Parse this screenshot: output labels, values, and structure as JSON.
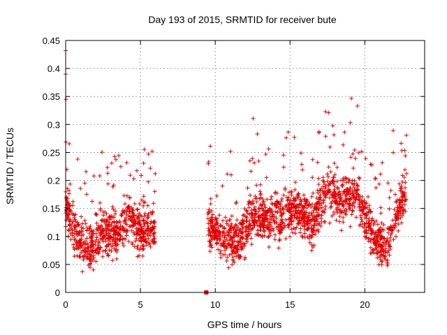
{
  "chart_data": {
    "type": "scatter",
    "title": "Day 193 of 2015, SRMTID for receiver bute",
    "xlabel": "GPS time / hours",
    "ylabel": "SRMTID / TECUs",
    "xlim": [
      0,
      24
    ],
    "ylim": [
      0,
      0.45
    ],
    "xticks": [
      0,
      5,
      10,
      15,
      20
    ],
    "xtick_labels": [
      "0",
      "5",
      "10",
      "15",
      "20"
    ],
    "yticks": [
      0,
      0.05,
      0.1,
      0.15,
      0.2,
      0.25,
      0.3,
      0.35,
      0.4,
      0.45
    ],
    "ytick_labels": [
      "0",
      "0.05",
      "0.1",
      "0.15",
      "0.2",
      "0.25",
      "0.3",
      "0.35",
      "0.4",
      "0.45"
    ],
    "grid": true,
    "marker": "plus",
    "color": "#e00000",
    "notable_points": [
      {
        "x": 0.0,
        "y": 0.432
      },
      {
        "x": 0.0,
        "y": 0.39
      },
      {
        "x": 0.02,
        "y": 0.345
      },
      {
        "x": 9.4,
        "y": 0.0
      }
    ],
    "segments": [
      {
        "x_start": 0.0,
        "x_end": 6.0,
        "points": 700,
        "trend": [
          [
            0.0,
            0.16
          ],
          [
            0.5,
            0.11
          ],
          [
            1.5,
            0.08
          ],
          [
            2.5,
            0.11
          ],
          [
            3.5,
            0.1
          ],
          [
            4.3,
            0.14
          ],
          [
            5.0,
            0.1
          ],
          [
            5.5,
            0.12
          ],
          [
            6.0,
            0.11
          ]
        ]
      },
      {
        "x_start": 9.5,
        "x_end": 22.8,
        "points": 1500,
        "trend": [
          [
            9.5,
            0.12
          ],
          [
            10.5,
            0.1
          ],
          [
            11.5,
            0.09
          ],
          [
            12.5,
            0.14
          ],
          [
            13.5,
            0.13
          ],
          [
            14.5,
            0.14
          ],
          [
            15.5,
            0.15
          ],
          [
            16.5,
            0.12
          ],
          [
            17.5,
            0.19
          ],
          [
            18.5,
            0.16
          ],
          [
            19.5,
            0.18
          ],
          [
            20.5,
            0.1
          ],
          [
            21.5,
            0.08
          ],
          [
            22.0,
            0.13
          ],
          [
            22.8,
            0.18
          ]
        ]
      }
    ]
  }
}
